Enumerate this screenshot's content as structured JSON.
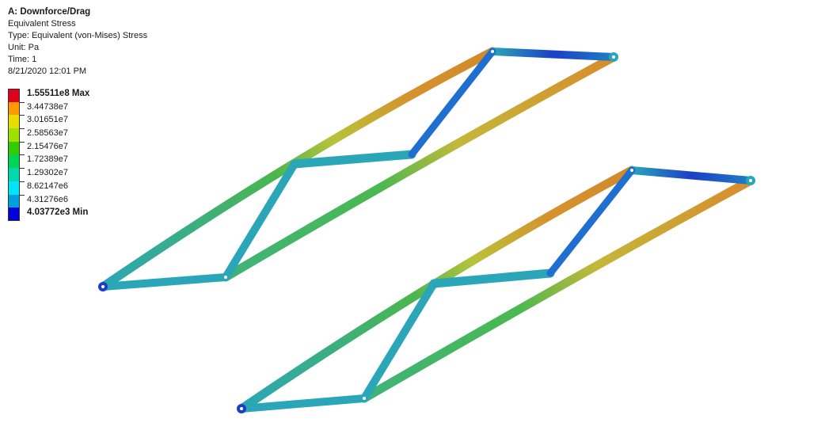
{
  "header": {
    "title": "A: Downforce/Drag",
    "result": "Equivalent Stress",
    "type": "Type: Equivalent (von-Mises) Stress",
    "unit": "Unit: Pa",
    "time": "Time: 1",
    "datetime": "8/21/2020 12:01 PM"
  },
  "legend": {
    "items": [
      {
        "label": "1.55511e8 Max",
        "color": "#e0001a",
        "bold": true
      },
      {
        "label": "3.44738e7",
        "color": "#ff9900",
        "bold": false
      },
      {
        "label": "3.01651e7",
        "color": "#e8dc00",
        "bold": false
      },
      {
        "label": "2.58563e7",
        "color": "#a0e000",
        "bold": false
      },
      {
        "label": "2.15476e7",
        "color": "#33cc00",
        "bold": false
      },
      {
        "label": "1.72389e7",
        "color": "#00d454",
        "bold": false
      },
      {
        "label": "1.29302e7",
        "color": "#00d8b0",
        "bold": false
      },
      {
        "label": "8.62147e6",
        "color": "#00e5f5",
        "bold": false
      },
      {
        "label": "4.31276e6",
        "color": "#009fe0",
        "bold": false
      },
      {
        "label": "4.03772e3 Min",
        "color": "#0000d8",
        "bold": true
      }
    ]
  },
  "model": {
    "name": "truss-model",
    "colors": {
      "base": "#2aa6b8",
      "green": "#4ab94f",
      "orange": "#d6912c",
      "blue": "#1c3fc6",
      "yellow": "#c3c23a"
    }
  }
}
